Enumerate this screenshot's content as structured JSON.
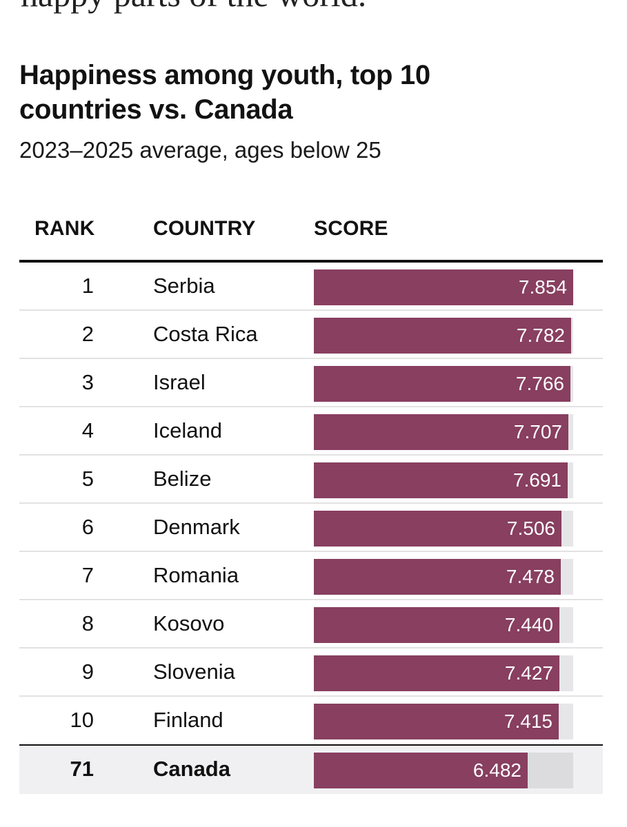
{
  "article": {
    "cut_text": "happy parts of the world."
  },
  "chart_data": {
    "type": "table",
    "title": "Happiness among youth, top 10 countries vs. Canada",
    "subtitle": "2023–2025 average, ages below 25",
    "columns": [
      "RANK",
      "COUNTRY",
      "SCORE"
    ],
    "bar_max": 7.854,
    "bar_color": "#883f60",
    "rows": [
      {
        "rank": "1",
        "country": "Serbia",
        "score": 7.854,
        "label": "7.854"
      },
      {
        "rank": "2",
        "country": "Costa Rica",
        "score": 7.782,
        "label": "7.782"
      },
      {
        "rank": "3",
        "country": "Israel",
        "score": 7.766,
        "label": "7.766"
      },
      {
        "rank": "4",
        "country": "Iceland",
        "score": 7.707,
        "label": "7.707"
      },
      {
        "rank": "5",
        "country": "Belize",
        "score": 7.691,
        "label": "7.691"
      },
      {
        "rank": "6",
        "country": "Denmark",
        "score": 7.506,
        "label": "7.506"
      },
      {
        "rank": "7",
        "country": "Romania",
        "score": 7.478,
        "label": "7.478"
      },
      {
        "rank": "8",
        "country": "Kosovo",
        "score": 7.44,
        "label": "7.440"
      },
      {
        "rank": "9",
        "country": "Slovenia",
        "score": 7.427,
        "label": "7.427"
      },
      {
        "rank": "10",
        "country": "Finland",
        "score": 7.415,
        "label": "7.415"
      }
    ],
    "highlight_row": {
      "rank": "71",
      "country": "Canada",
      "score": 6.482,
      "label": "6.482"
    }
  }
}
